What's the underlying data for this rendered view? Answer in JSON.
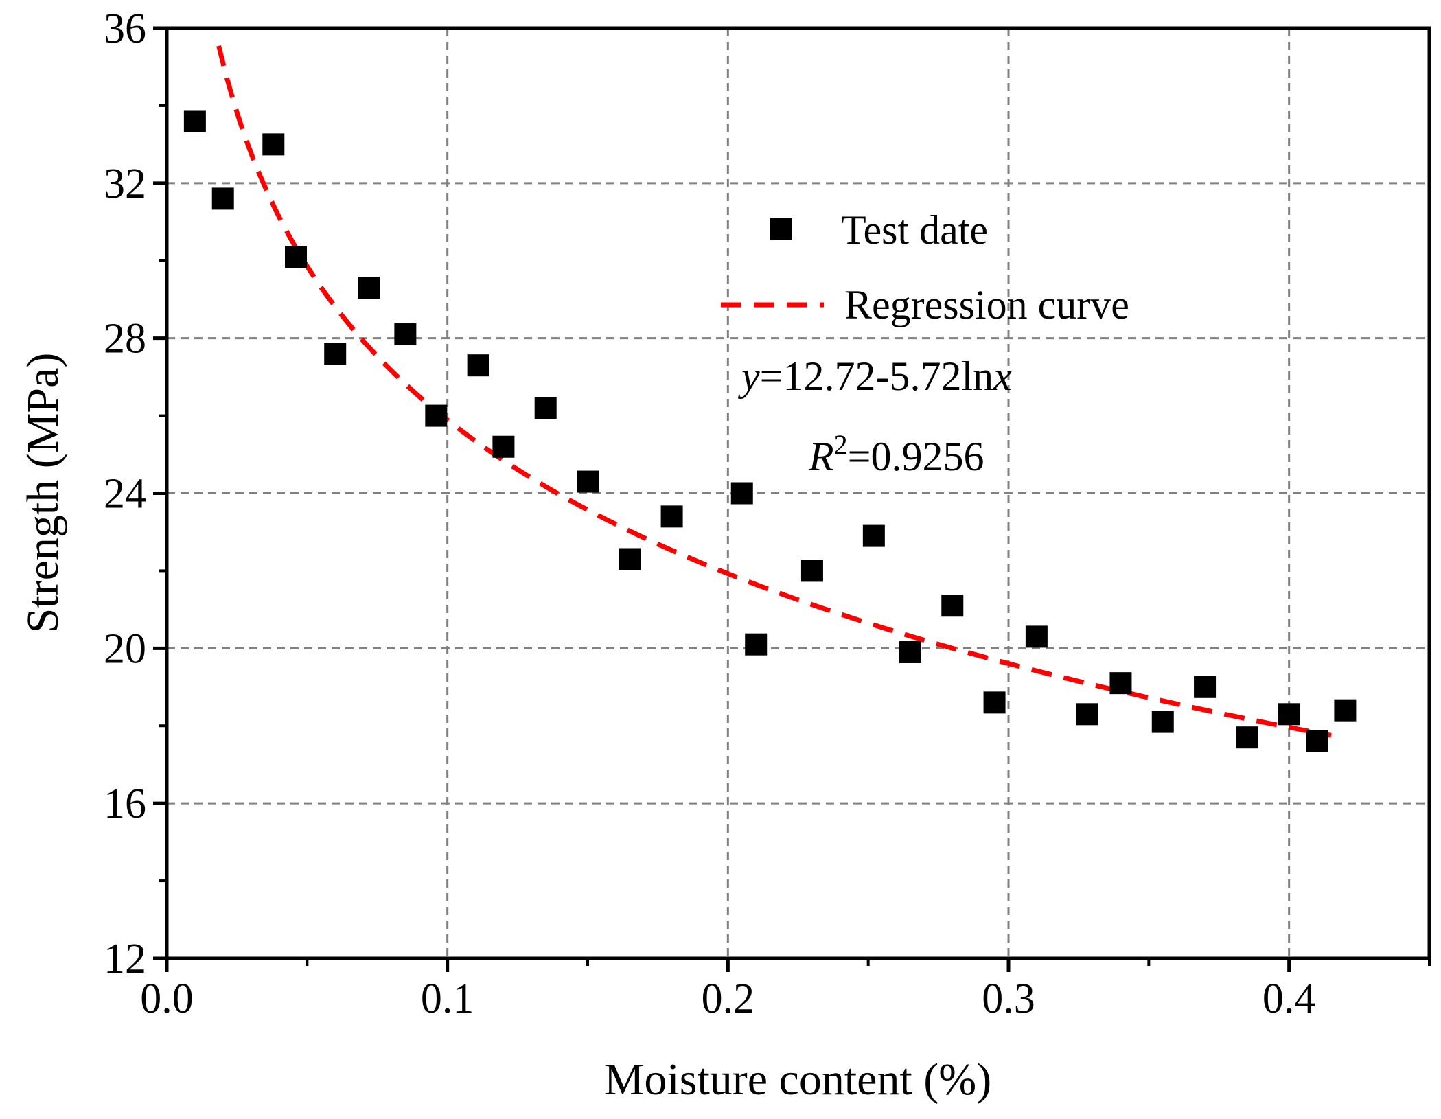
{
  "chart_data": {
    "type": "scatter",
    "title": "",
    "xlabel": "Moisture content (%)",
    "ylabel": "Strength (MPa)",
    "xlim": [
      0.0,
      0.45
    ],
    "ylim": [
      12,
      36
    ],
    "x_ticks": [
      0.0,
      0.1,
      0.2,
      0.3,
      0.4
    ],
    "x_tick_labels": [
      "0.0",
      "0.1",
      "0.2",
      "0.3",
      "0.4"
    ],
    "y_ticks": [
      12,
      16,
      20,
      24,
      28,
      32,
      36
    ],
    "y_tick_labels": [
      "12",
      "16",
      "20",
      "24",
      "28",
      "32",
      "36"
    ],
    "grid": true,
    "series": [
      {
        "name": "Test date",
        "kind": "scatter",
        "marker": "square",
        "color": "#000000",
        "points": [
          {
            "x": 0.01,
            "y": 33.6
          },
          {
            "x": 0.02,
            "y": 31.6
          },
          {
            "x": 0.038,
            "y": 33.0
          },
          {
            "x": 0.046,
            "y": 30.1
          },
          {
            "x": 0.06,
            "y": 27.6
          },
          {
            "x": 0.072,
            "y": 29.3
          },
          {
            "x": 0.085,
            "y": 28.1
          },
          {
            "x": 0.096,
            "y": 26.0
          },
          {
            "x": 0.111,
            "y": 27.3
          },
          {
            "x": 0.12,
            "y": 25.2
          },
          {
            "x": 0.135,
            "y": 26.2
          },
          {
            "x": 0.15,
            "y": 24.3
          },
          {
            "x": 0.165,
            "y": 22.3
          },
          {
            "x": 0.18,
            "y": 23.4
          },
          {
            "x": 0.205,
            "y": 24.0
          },
          {
            "x": 0.21,
            "y": 20.1
          },
          {
            "x": 0.23,
            "y": 22.0
          },
          {
            "x": 0.252,
            "y": 22.9
          },
          {
            "x": 0.265,
            "y": 19.9
          },
          {
            "x": 0.28,
            "y": 21.1
          },
          {
            "x": 0.295,
            "y": 18.6
          },
          {
            "x": 0.31,
            "y": 20.3
          },
          {
            "x": 0.328,
            "y": 18.3
          },
          {
            "x": 0.34,
            "y": 19.1
          },
          {
            "x": 0.355,
            "y": 18.1
          },
          {
            "x": 0.37,
            "y": 19.0
          },
          {
            "x": 0.385,
            "y": 17.7
          },
          {
            "x": 0.4,
            "y": 18.3
          },
          {
            "x": 0.41,
            "y": 17.6
          },
          {
            "x": 0.42,
            "y": 18.4
          }
        ]
      },
      {
        "name": "Regression curve",
        "kind": "line",
        "style": "dashed",
        "color": "#ff0000",
        "equation": "y = 12.72 - 5.72 ln x",
        "intercept": 12.72,
        "coefficient": -5.72,
        "x_range": [
          0.0185,
          0.415
        ]
      }
    ],
    "legend": {
      "position": "upper-right-inside",
      "entries": [
        "Test date",
        "Regression curve"
      ]
    },
    "annotations": {
      "equation_y": "y",
      "equation_rest": "=12.72-5.72ln",
      "equation_x": "x",
      "r2_r": "R",
      "r2_sup": "2",
      "r2_value": "=0.9256"
    }
  }
}
